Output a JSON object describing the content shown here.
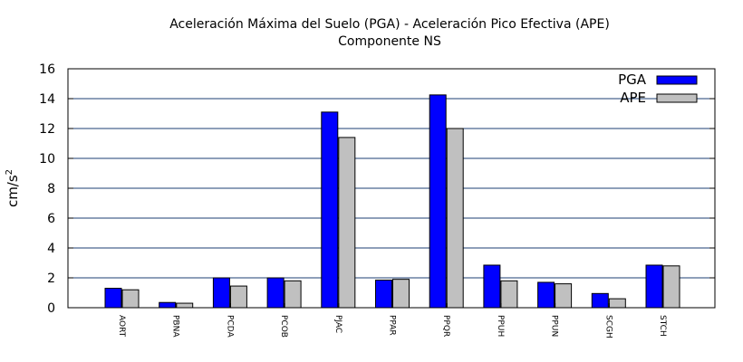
{
  "chart_data": {
    "type": "bar",
    "title": "Aceleración Máxima del Suelo (PGA) -  Aceleración Pico Efectiva (APE)",
    "subtitle": "Componente NS",
    "ylabel": "cm/s",
    "ylabel_sup": "2",
    "xlabel": "",
    "ylim": [
      0,
      16
    ],
    "yticks": [
      0,
      2,
      4,
      6,
      8,
      10,
      12,
      14,
      16
    ],
    "grid": true,
    "legend_position": "top-right",
    "categories": [
      "AORT",
      "PBNA",
      "PCDA",
      "PCOB",
      "PJAC",
      "PPAR",
      "PPQR",
      "PPUH",
      "PPUN",
      "SCGH",
      "STCH"
    ],
    "series": [
      {
        "name": "PGA",
        "color": "#0000ff",
        "values": [
          1.3,
          0.35,
          2.0,
          2.0,
          13.1,
          1.85,
          14.25,
          2.85,
          1.7,
          0.95,
          2.85
        ]
      },
      {
        "name": "APE",
        "color": "#c0c0c0",
        "values": [
          1.2,
          0.3,
          1.45,
          1.8,
          11.4,
          1.9,
          12.0,
          1.8,
          1.6,
          0.6,
          2.8
        ]
      }
    ]
  }
}
